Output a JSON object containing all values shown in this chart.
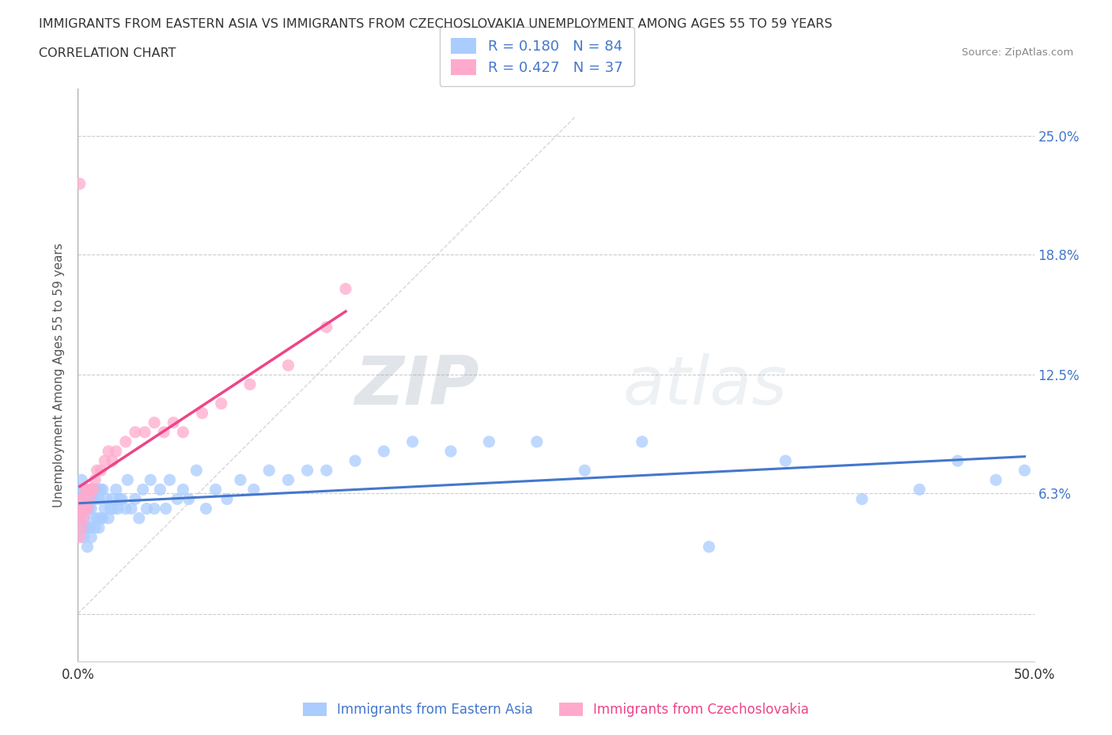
{
  "title_line1": "IMMIGRANTS FROM EASTERN ASIA VS IMMIGRANTS FROM CZECHOSLOVAKIA UNEMPLOYMENT AMONG AGES 55 TO 59 YEARS",
  "title_line2": "CORRELATION CHART",
  "source": "Source: ZipAtlas.com",
  "ylabel": "Unemployment Among Ages 55 to 59 years",
  "xlim": [
    0.0,
    0.5
  ],
  "ylim": [
    -0.025,
    0.275
  ],
  "xticks": [
    0.0,
    0.1,
    0.2,
    0.3,
    0.4,
    0.5
  ],
  "xticklabels": [
    "0.0%",
    "",
    "",
    "",
    "",
    "50.0%"
  ],
  "ytick_positions": [
    0.0,
    0.063,
    0.125,
    0.188,
    0.25
  ],
  "ytick_labels": [
    "",
    "6.3%",
    "12.5%",
    "18.8%",
    "25.0%"
  ],
  "r_eastern_asia": 0.18,
  "n_eastern_asia": 84,
  "r_czechoslovakia": 0.427,
  "n_czechoslovakia": 37,
  "color_eastern_asia": "#aaccff",
  "color_czechoslovakia": "#ffaacc",
  "color_trendline_eastern_asia": "#4477cc",
  "color_trendline_czechoslovakia": "#ee4488",
  "color_diagonal": "#cccccc",
  "background_color": "#ffffff",
  "watermark_zip": "ZIP",
  "watermark_atlas": "atlas",
  "eastern_asia_x": [
    0.001,
    0.001,
    0.002,
    0.002,
    0.002,
    0.003,
    0.003,
    0.003,
    0.003,
    0.004,
    0.004,
    0.004,
    0.005,
    0.005,
    0.005,
    0.005,
    0.006,
    0.006,
    0.006,
    0.007,
    0.007,
    0.007,
    0.008,
    0.008,
    0.009,
    0.009,
    0.01,
    0.01,
    0.011,
    0.011,
    0.012,
    0.012,
    0.013,
    0.013,
    0.014,
    0.015,
    0.016,
    0.017,
    0.018,
    0.019,
    0.02,
    0.021,
    0.022,
    0.023,
    0.025,
    0.026,
    0.028,
    0.03,
    0.032,
    0.034,
    0.036,
    0.038,
    0.04,
    0.043,
    0.046,
    0.048,
    0.052,
    0.055,
    0.058,
    0.062,
    0.067,
    0.072,
    0.078,
    0.085,
    0.092,
    0.1,
    0.11,
    0.12,
    0.13,
    0.145,
    0.16,
    0.175,
    0.195,
    0.215,
    0.24,
    0.265,
    0.295,
    0.33,
    0.37,
    0.41,
    0.44,
    0.46,
    0.48,
    0.495
  ],
  "eastern_asia_y": [
    0.055,
    0.065,
    0.045,
    0.06,
    0.07,
    0.04,
    0.05,
    0.055,
    0.065,
    0.045,
    0.055,
    0.065,
    0.035,
    0.045,
    0.055,
    0.065,
    0.045,
    0.055,
    0.065,
    0.04,
    0.055,
    0.065,
    0.05,
    0.06,
    0.045,
    0.06,
    0.05,
    0.065,
    0.045,
    0.06,
    0.05,
    0.065,
    0.05,
    0.065,
    0.055,
    0.06,
    0.05,
    0.055,
    0.06,
    0.055,
    0.065,
    0.055,
    0.06,
    0.06,
    0.055,
    0.07,
    0.055,
    0.06,
    0.05,
    0.065,
    0.055,
    0.07,
    0.055,
    0.065,
    0.055,
    0.07,
    0.06,
    0.065,
    0.06,
    0.075,
    0.055,
    0.065,
    0.06,
    0.07,
    0.065,
    0.075,
    0.07,
    0.075,
    0.075,
    0.08,
    0.085,
    0.09,
    0.085,
    0.09,
    0.09,
    0.075,
    0.09,
    0.035,
    0.08,
    0.06,
    0.065,
    0.08,
    0.07,
    0.075
  ],
  "czechoslovakia_x": [
    0.001,
    0.001,
    0.001,
    0.002,
    0.002,
    0.002,
    0.003,
    0.003,
    0.003,
    0.004,
    0.004,
    0.005,
    0.005,
    0.006,
    0.007,
    0.008,
    0.009,
    0.01,
    0.012,
    0.014,
    0.016,
    0.018,
    0.02,
    0.025,
    0.03,
    0.035,
    0.04,
    0.045,
    0.05,
    0.055,
    0.065,
    0.075,
    0.09,
    0.11,
    0.13,
    0.14,
    0.001
  ],
  "czechoslovakia_y": [
    0.04,
    0.05,
    0.055,
    0.045,
    0.055,
    0.06,
    0.05,
    0.055,
    0.06,
    0.055,
    0.065,
    0.055,
    0.065,
    0.06,
    0.065,
    0.065,
    0.07,
    0.075,
    0.075,
    0.08,
    0.085,
    0.08,
    0.085,
    0.09,
    0.095,
    0.095,
    0.1,
    0.095,
    0.1,
    0.095,
    0.105,
    0.11,
    0.12,
    0.13,
    0.15,
    0.17,
    0.225
  ]
}
